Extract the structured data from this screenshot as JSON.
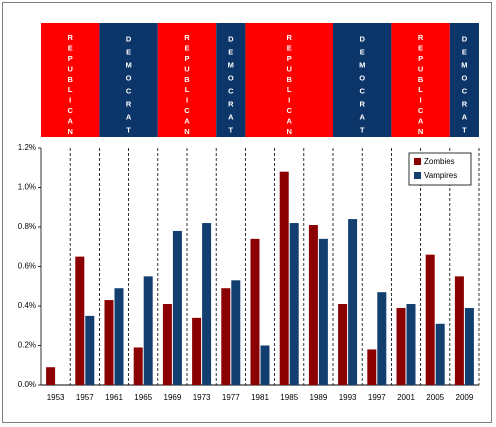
{
  "chart_data": {
    "type": "bar",
    "title": "",
    "xlabel": "",
    "ylabel": "",
    "ylim": [
      0,
      1.2
    ],
    "y_ticks": [
      "0.0%",
      "0.2%",
      "0.4%",
      "0.6%",
      "0.8%",
      "1.0%",
      "1.2%"
    ],
    "categories": [
      "1953",
      "1957",
      "1961",
      "1965",
      "1969",
      "1973",
      "1977",
      "1981",
      "1985",
      "1989",
      "1993",
      "1997",
      "2001",
      "2005",
      "2009"
    ],
    "series": [
      {
        "name": "Zombies",
        "color": "#8b0000",
        "values": [
          0.09,
          0.65,
          0.43,
          0.19,
          0.41,
          0.34,
          0.49,
          0.74,
          1.08,
          0.81,
          0.41,
          0.18,
          0.39,
          0.66,
          0.55
        ]
      },
      {
        "name": "Vampires",
        "color": "#123f6f",
        "values": [
          0,
          0.35,
          0.49,
          0.55,
          0.78,
          0.82,
          0.53,
          0.2,
          0.82,
          0.74,
          0.84,
          0.47,
          0.41,
          0.31,
          0.39
        ]
      }
    ],
    "legend_position": "top-right",
    "grid": "dashed vertical separators between presidential terms",
    "party_banner": {
      "colors": {
        "REPUBLICAN": "#ff0000",
        "DEMOCRAT": "#0c3669"
      },
      "periods": [
        {
          "party": "REPUBLICAN",
          "from": "1953",
          "to": "1957"
        },
        {
          "party": "DEMOCRAT",
          "from": "1961",
          "to": "1965"
        },
        {
          "party": "REPUBLICAN",
          "from": "1969",
          "to": "1973"
        },
        {
          "party": "DEMOCRAT",
          "from": "1977",
          "to": "1977"
        },
        {
          "party": "REPUBLICAN",
          "from": "1981",
          "to": "1989"
        },
        {
          "party": "DEMOCRAT",
          "from": "1993",
          "to": "1997"
        },
        {
          "party": "REPUBLICAN",
          "from": "2001",
          "to": "2005"
        },
        {
          "party": "DEMOCRAT",
          "from": "2009",
          "to": "2009"
        }
      ]
    }
  }
}
